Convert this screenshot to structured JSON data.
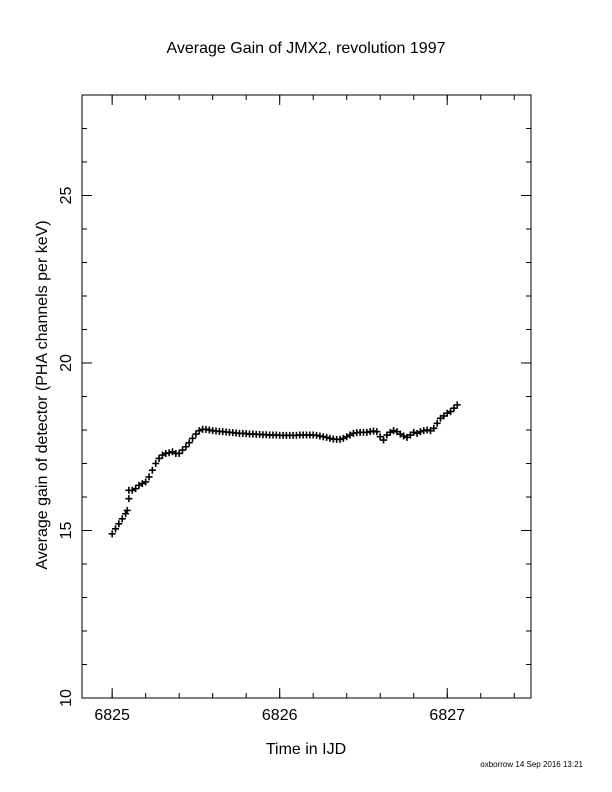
{
  "chart_data": {
    "type": "scatter",
    "title": "Average Gain of JMX2, revolution 1997",
    "xlabel": "Time in IJD",
    "ylabel": "Average gain of detector (PHA channels per keV)",
    "xlim": [
      6824.82,
      6827.5
    ],
    "ylim": [
      10,
      28
    ],
    "xticks": [
      6825,
      6826,
      6827
    ],
    "yticks": [
      10,
      15,
      20,
      25
    ],
    "x_minor_step": 0.2,
    "y_minor_step": 1,
    "marker": "+",
    "color": "#000000",
    "grid": false,
    "points": [
      [
        6825.0,
        14.9
      ],
      [
        6825.02,
        15.05
      ],
      [
        6825.04,
        15.2
      ],
      [
        6825.06,
        15.35
      ],
      [
        6825.08,
        15.5
      ],
      [
        6825.09,
        15.6
      ],
      [
        6825.1,
        16.2
      ],
      [
        6825.1,
        15.95
      ],
      [
        6825.12,
        16.2
      ],
      [
        6825.14,
        16.25
      ],
      [
        6825.16,
        16.35
      ],
      [
        6825.18,
        16.4
      ],
      [
        6825.2,
        16.45
      ],
      [
        6825.22,
        16.6
      ],
      [
        6825.24,
        16.8
      ],
      [
        6825.26,
        17.0
      ],
      [
        6825.28,
        17.15
      ],
      [
        6825.3,
        17.25
      ],
      [
        6825.32,
        17.3
      ],
      [
        6825.34,
        17.32
      ],
      [
        6825.36,
        17.35
      ],
      [
        6825.38,
        17.3
      ],
      [
        6825.4,
        17.3
      ],
      [
        6825.42,
        17.4
      ],
      [
        6825.44,
        17.5
      ],
      [
        6825.46,
        17.62
      ],
      [
        6825.48,
        17.75
      ],
      [
        6825.5,
        17.88
      ],
      [
        6825.52,
        17.98
      ],
      [
        6825.54,
        18.02
      ],
      [
        6825.56,
        18.02
      ],
      [
        6825.58,
        18.0
      ],
      [
        6825.6,
        17.98
      ],
      [
        6825.62,
        17.97
      ],
      [
        6825.64,
        17.96
      ],
      [
        6825.66,
        17.95
      ],
      [
        6825.68,
        17.94
      ],
      [
        6825.7,
        17.93
      ],
      [
        6825.72,
        17.92
      ],
      [
        6825.74,
        17.91
      ],
      [
        6825.76,
        17.9
      ],
      [
        6825.78,
        17.9
      ],
      [
        6825.8,
        17.89
      ],
      [
        6825.82,
        17.88
      ],
      [
        6825.84,
        17.88
      ],
      [
        6825.86,
        17.87
      ],
      [
        6825.88,
        17.87
      ],
      [
        6825.9,
        17.86
      ],
      [
        6825.92,
        17.86
      ],
      [
        6825.94,
        17.85
      ],
      [
        6825.96,
        17.85
      ],
      [
        6825.98,
        17.85
      ],
      [
        6826.0,
        17.84
      ],
      [
        6826.02,
        17.84
      ],
      [
        6826.04,
        17.84
      ],
      [
        6826.06,
        17.84
      ],
      [
        6826.08,
        17.84
      ],
      [
        6826.1,
        17.84
      ],
      [
        6826.12,
        17.85
      ],
      [
        6826.14,
        17.85
      ],
      [
        6826.16,
        17.85
      ],
      [
        6826.18,
        17.85
      ],
      [
        6826.2,
        17.85
      ],
      [
        6826.22,
        17.84
      ],
      [
        6826.24,
        17.82
      ],
      [
        6826.26,
        17.8
      ],
      [
        6826.28,
        17.78
      ],
      [
        6826.3,
        17.75
      ],
      [
        6826.32,
        17.73
      ],
      [
        6826.34,
        17.72
      ],
      [
        6826.36,
        17.72
      ],
      [
        6826.38,
        17.75
      ],
      [
        6826.4,
        17.8
      ],
      [
        6826.42,
        17.85
      ],
      [
        6826.44,
        17.9
      ],
      [
        6826.46,
        17.92
      ],
      [
        6826.48,
        17.93
      ],
      [
        6826.5,
        17.93
      ],
      [
        6826.52,
        17.93
      ],
      [
        6826.54,
        17.95
      ],
      [
        6826.56,
        17.97
      ],
      [
        6826.58,
        17.95
      ],
      [
        6826.6,
        17.8
      ],
      [
        6826.62,
        17.7
      ],
      [
        6826.64,
        17.85
      ],
      [
        6826.66,
        17.93
      ],
      [
        6826.68,
        17.98
      ],
      [
        6826.7,
        17.95
      ],
      [
        6826.72,
        17.88
      ],
      [
        6826.74,
        17.82
      ],
      [
        6826.76,
        17.78
      ],
      [
        6826.78,
        17.85
      ],
      [
        6826.8,
        17.93
      ],
      [
        6826.82,
        17.9
      ],
      [
        6826.84,
        17.95
      ],
      [
        6826.86,
        17.98
      ],
      [
        6826.88,
        18.0
      ],
      [
        6826.9,
        17.98
      ],
      [
        6826.92,
        18.05
      ],
      [
        6826.94,
        18.2
      ],
      [
        6826.96,
        18.35
      ],
      [
        6826.98,
        18.42
      ],
      [
        6827.0,
        18.5
      ],
      [
        6827.02,
        18.55
      ],
      [
        6827.04,
        18.65
      ],
      [
        6827.06,
        18.75
      ]
    ]
  },
  "footer_text": "oxborrow 14  Sep  2016 13:21"
}
